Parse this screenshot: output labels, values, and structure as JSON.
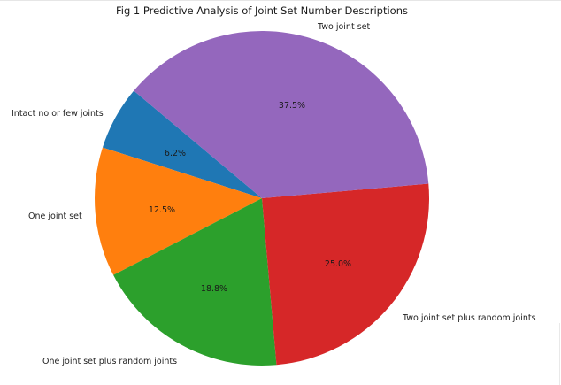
{
  "chart_data": {
    "type": "pie",
    "title": "Fig 1 Predictive Analysis of Joint Set Number Descriptions",
    "categories": [
      "Intact no or few joints",
      "One joint set",
      "One joint set plus random joints",
      "Two joint set plus random joints",
      "Two joint set"
    ],
    "values": [
      6.2,
      12.5,
      18.8,
      25.0,
      37.5
    ],
    "value_labels": [
      "6.2%",
      "12.5%",
      "18.8%",
      "25.0%",
      "37.5%"
    ],
    "colors": [
      "#1f77b4",
      "#ff7f0e",
      "#2ca02c",
      "#d62728",
      "#9467bd"
    ],
    "start_angle_deg": 140,
    "direction": "counterclockwise",
    "legend": "none (labels on wedges)"
  },
  "title": "Fig 1 Predictive Analysis of Joint Set Number Descriptions",
  "labels": {
    "intact": "Intact no or few joints",
    "one_set": "One joint set",
    "one_set_random": "One joint set plus random joints",
    "two_set_random": "Two joint set plus random joints",
    "two_set": "Two joint set"
  },
  "percents": {
    "intact": "6.2%",
    "one_set": "12.5%",
    "one_set_random": "18.8%",
    "two_set_random": "25.0%",
    "two_set": "37.5%"
  }
}
